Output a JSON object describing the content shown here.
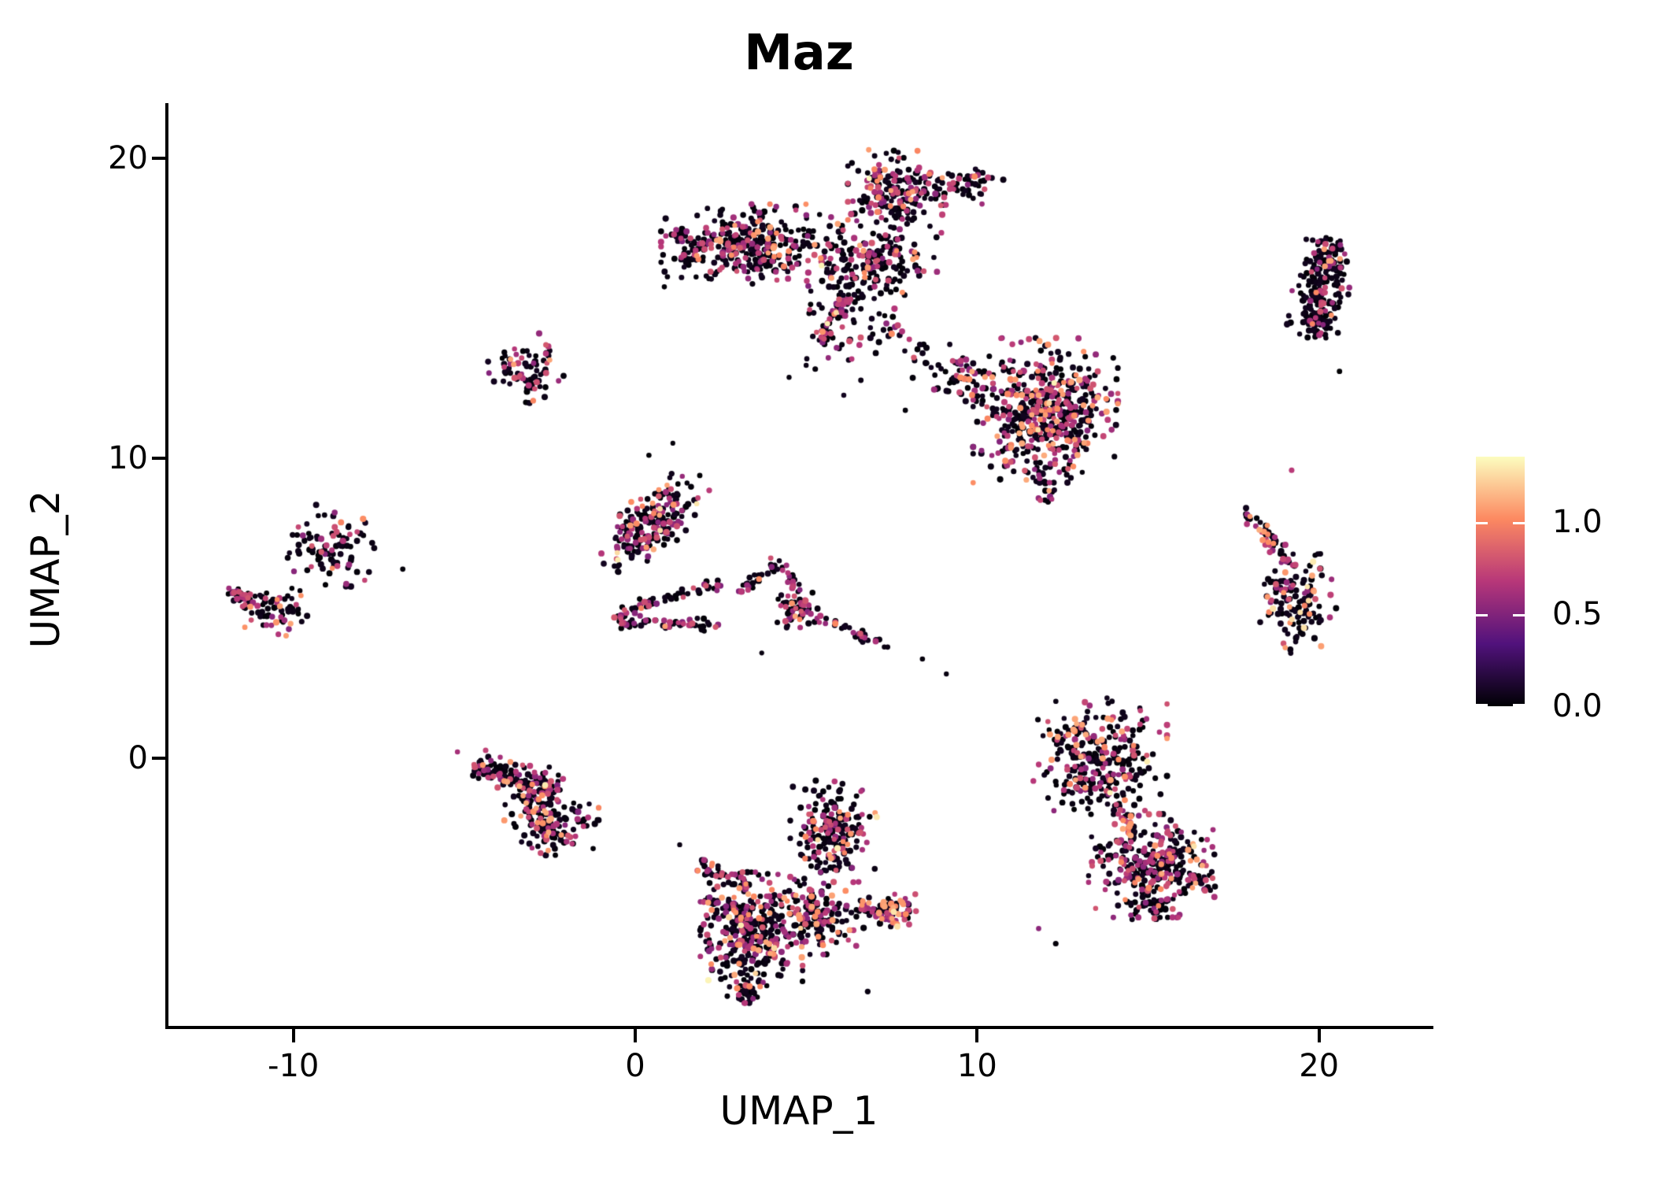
{
  "chart_data": {
    "type": "scatter",
    "title": "Maz",
    "xlabel": "UMAP_1",
    "ylabel": "UMAP_2",
    "background": "#FFFFFF",
    "axis_color": "#000000",
    "grid": "off",
    "xlim": [
      -13.7,
      23.3
    ],
    "ylim": [
      -9.0,
      21.8
    ],
    "x_ticks": [
      -10,
      0,
      10,
      20
    ],
    "y_ticks": [
      0,
      10,
      20
    ],
    "x_tick_labels": [
      "-10",
      "0",
      "10",
      "20"
    ],
    "y_tick_labels": [
      "0",
      "10",
      "20"
    ],
    "point_radius_px": 3.7,
    "colorbar": {
      "colormap": "magma",
      "anchors": [
        "#000004",
        "#51127C",
        "#B73779",
        "#FC8961",
        "#FCFDBF"
      ],
      "tick_values": [
        0.0,
        0.5,
        1.0
      ],
      "tick_labels": [
        "0.0",
        "0.5",
        "1.0"
      ],
      "vmax": 1.355,
      "legend_meaning": "expression level of Maz"
    },
    "color_semantics": {
      "zero_expression": "#000004",
      "mid_expression": "#B73779",
      "high_expression": "#FC8961",
      "max_expression": "#FCFDBF"
    },
    "clusters": [
      {
        "name": "top-band",
        "kind": "blob",
        "cx": 3.4,
        "cy": 17.1,
        "sx": 1.15,
        "sy": 0.6,
        "rot": 0,
        "n": 340,
        "mix": [
          0.62,
          0.3,
          0.07,
          0.01
        ]
      },
      {
        "name": "top-band-left-tip",
        "kind": "strand",
        "x1": 1.25,
        "y1": 17.6,
        "x2": 1.7,
        "y2": 16.5,
        "w": 0.18,
        "n": 30,
        "mix": [
          0.55,
          0.38,
          0.07,
          0
        ]
      },
      {
        "name": "top-upper-lobe",
        "kind": "blob",
        "cx": 7.6,
        "cy": 18.8,
        "sx": 0.6,
        "sy": 0.65,
        "rot": 0,
        "n": 185,
        "mix": [
          0.58,
          0.33,
          0.08,
          0.01
        ]
      },
      {
        "name": "top-upper-lobe-right",
        "kind": "blob",
        "cx": 9.5,
        "cy": 19.1,
        "sx": 0.55,
        "sy": 0.28,
        "rot": 0,
        "n": 60,
        "mix": [
          0.62,
          0.3,
          0.08,
          0
        ]
      },
      {
        "name": "top-mid-web",
        "kind": "blob",
        "cx": 7.0,
        "cy": 16.6,
        "sx": 0.85,
        "sy": 0.5,
        "rot": 0,
        "n": 170,
        "mix": [
          0.66,
          0.27,
          0.06,
          0.005
        ]
      },
      {
        "name": "top-gap-sparse",
        "kind": "blob",
        "cx": 5.9,
        "cy": 14.7,
        "sx": 0.75,
        "sy": 0.75,
        "rot": 0,
        "n": 62,
        "mix": [
          0.72,
          0.24,
          0.04,
          0
        ]
      },
      {
        "name": "top-tail",
        "kind": "strand",
        "x1": 6.2,
        "y1": 15.3,
        "x2": 5.35,
        "y2": 13.9,
        "w": 0.12,
        "n": 45,
        "mix": [
          0.45,
          0.48,
          0.05,
          0.01
        ]
      },
      {
        "name": "top-right-trail",
        "kind": "strand",
        "x1": 7.1,
        "y1": 15.4,
        "x2": 8.6,
        "y2": 12.8,
        "w": 0.25,
        "n": 28,
        "mix": [
          0.68,
          0.26,
          0.06,
          0
        ]
      },
      {
        "name": "trail-to-right-blob",
        "kind": "strand",
        "x1": 8.8,
        "y1": 12.7,
        "x2": 10.2,
        "y2": 12.2,
        "w": 0.3,
        "n": 24,
        "mix": [
          0.62,
          0.28,
          0.1,
          0
        ]
      },
      {
        "name": "right-blob",
        "kind": "blob",
        "cx": 12.0,
        "cy": 11.6,
        "sx": 0.92,
        "sy": 1.05,
        "rot": 0,
        "n": 540,
        "mix": [
          0.6,
          0.28,
          0.11,
          0.005
        ]
      },
      {
        "name": "right-blob-west-arm",
        "kind": "strand",
        "x1": 9.45,
        "y1": 13.35,
        "x2": 10.3,
        "y2": 12.1,
        "w": 0.2,
        "n": 30,
        "mix": [
          0.55,
          0.33,
          0.12,
          0
        ]
      },
      {
        "name": "right-blob-tail",
        "kind": "strand",
        "x1": 11.85,
        "y1": 9.5,
        "x2": 12.15,
        "y2": 8.5,
        "w": 0.15,
        "n": 15,
        "mix": [
          0.7,
          0.25,
          0.05,
          0
        ]
      },
      {
        "name": "topright-sausage",
        "kind": "strand",
        "x1": 20.25,
        "y1": 17.3,
        "x2": 19.85,
        "y2": 14.05,
        "w": 0.36,
        "n": 235,
        "mix": [
          0.78,
          0.17,
          0.05,
          0
        ]
      },
      {
        "name": "right-streak",
        "kind": "strand",
        "x1": 17.85,
        "y1": 8.3,
        "x2": 19.1,
        "y2": 6.45,
        "w": 0.13,
        "n": 48,
        "mix": [
          0.55,
          0.34,
          0.11,
          0
        ]
      },
      {
        "name": "right-lower-blob",
        "kind": "blob",
        "cx": 19.35,
        "cy": 5.15,
        "sx": 0.5,
        "sy": 0.72,
        "rot": 0,
        "n": 135,
        "mix": [
          0.68,
          0.21,
          0.09,
          0.02
        ]
      },
      {
        "name": "left-blob",
        "kind": "blob",
        "cx": -8.9,
        "cy": 7.1,
        "sx": 0.55,
        "sy": 0.6,
        "rot": 0,
        "n": 95,
        "mix": [
          0.74,
          0.24,
          0.02,
          0
        ]
      },
      {
        "name": "farleft-streak",
        "kind": "strand",
        "x1": -11.95,
        "y1": 5.65,
        "x2": -11.15,
        "y2": 5.15,
        "w": 0.1,
        "n": 28,
        "mix": [
          0.58,
          0.32,
          0.1,
          0
        ]
      },
      {
        "name": "farleft-blob",
        "kind": "blob",
        "cx": -10.45,
        "cy": 4.85,
        "sx": 0.48,
        "sy": 0.35,
        "rot": 0,
        "n": 65,
        "mix": [
          0.62,
          0.28,
          0.1,
          0
        ]
      },
      {
        "name": "small-mid-blob",
        "kind": "blob",
        "cx": -3.2,
        "cy": 12.9,
        "sx": 0.48,
        "sy": 0.55,
        "rot": 0,
        "n": 80,
        "mix": [
          0.66,
          0.24,
          0.1,
          0
        ]
      },
      {
        "name": "center-diag-blob",
        "kind": "blob",
        "cx": 0.55,
        "cy": 7.9,
        "sx": 0.88,
        "sy": 0.4,
        "rot": 52,
        "n": 215,
        "mix": [
          0.6,
          0.33,
          0.06,
          0.005
        ]
      },
      {
        "name": "loop-upper",
        "kind": "strand",
        "x1": -0.35,
        "y1": 4.9,
        "x2": 2.45,
        "y2": 5.85,
        "w": 0.1,
        "n": 48,
        "mix": [
          0.62,
          0.34,
          0.04,
          0
        ]
      },
      {
        "name": "loop-lower",
        "kind": "strand",
        "x1": -0.4,
        "y1": 4.55,
        "x2": 2.4,
        "y2": 4.45,
        "w": 0.1,
        "n": 52,
        "mix": [
          0.64,
          0.32,
          0.04,
          0
        ]
      },
      {
        "name": "loop-left-cap",
        "kind": "blob",
        "cx": -0.45,
        "cy": 4.72,
        "sx": 0.12,
        "sy": 0.2,
        "rot": 0,
        "n": 10,
        "mix": [
          0.6,
          0.4,
          0,
          0
        ]
      },
      {
        "name": "peak-up",
        "kind": "strand",
        "x1": 3.0,
        "y1": 5.5,
        "x2": 4.2,
        "y2": 6.6,
        "w": 0.1,
        "n": 26,
        "mix": [
          0.55,
          0.4,
          0.05,
          0
        ]
      },
      {
        "name": "peak-down",
        "kind": "strand",
        "x1": 4.25,
        "y1": 6.6,
        "x2": 5.2,
        "y2": 4.45,
        "w": 0.1,
        "n": 30,
        "mix": [
          0.6,
          0.36,
          0.04,
          0
        ]
      },
      {
        "name": "peak-blob",
        "kind": "blob",
        "cx": 4.7,
        "cy": 5.05,
        "sx": 0.3,
        "sy": 0.35,
        "rot": 0,
        "n": 42,
        "mix": [
          0.62,
          0.3,
          0.08,
          0
        ]
      },
      {
        "name": "line-se",
        "kind": "strand",
        "x1": 5.3,
        "y1": 4.75,
        "x2": 7.4,
        "y2": 3.7,
        "w": 0.08,
        "n": 34,
        "mix": [
          0.62,
          0.34,
          0.04,
          0
        ]
      },
      {
        "name": "bottomleft-band",
        "kind": "strand",
        "x1": -4.7,
        "y1": -0.3,
        "x2": -2.2,
        "y2": -1.05,
        "w": 0.27,
        "n": 135,
        "mix": [
          0.64,
          0.26,
          0.09,
          0.005
        ]
      },
      {
        "name": "bottomleft-connector",
        "kind": "strand",
        "x1": -3.3,
        "y1": -1.2,
        "x2": -2.9,
        "y2": -1.9,
        "w": 0.14,
        "n": 24,
        "mix": [
          0.55,
          0.3,
          0.15,
          0
        ]
      },
      {
        "name": "bottomleft-blob",
        "kind": "blob",
        "cx": -2.45,
        "cy": -2.1,
        "sx": 0.6,
        "sy": 0.5,
        "rot": 0,
        "n": 125,
        "mix": [
          0.64,
          0.27,
          0.09,
          0
        ]
      },
      {
        "name": "bottommid-upper-lobe",
        "kind": "blob",
        "cx": 5.8,
        "cy": -2.6,
        "sx": 0.55,
        "sy": 0.8,
        "rot": 0,
        "n": 215,
        "mix": [
          0.62,
          0.29,
          0.08,
          0.005
        ]
      },
      {
        "name": "bottommid-left-arm-a",
        "kind": "strand",
        "x1": 1.7,
        "y1": -3.5,
        "x2": 3.3,
        "y2": -4.3,
        "w": 0.17,
        "n": 40,
        "mix": [
          0.66,
          0.26,
          0.08,
          0
        ]
      },
      {
        "name": "bottommid-left-arm-b",
        "kind": "strand",
        "x1": 2.0,
        "y1": -4.65,
        "x2": 3.2,
        "y2": -5.25,
        "w": 0.14,
        "n": 30,
        "mix": [
          0.68,
          0.26,
          0.06,
          0
        ]
      },
      {
        "name": "bottommid-main",
        "kind": "blob",
        "cx": 3.4,
        "cy": -6.0,
        "sx": 0.65,
        "sy": 0.95,
        "rot": 0,
        "n": 345,
        "mix": [
          0.62,
          0.28,
          0.08,
          0.02
        ]
      },
      {
        "name": "bottommid-right-arm",
        "kind": "blob",
        "cx": 5.3,
        "cy": -5.3,
        "sx": 0.6,
        "sy": 0.55,
        "rot": 0,
        "n": 165,
        "mix": [
          0.64,
          0.28,
          0.08,
          0
        ]
      },
      {
        "name": "bottommid-bridge",
        "kind": "strand",
        "x1": 6.4,
        "y1": -5.0,
        "x2": 7.5,
        "y2": -5.1,
        "w": 0.17,
        "n": 40,
        "mix": [
          0.62,
          0.28,
          0.1,
          0
        ]
      },
      {
        "name": "bottommid-knot",
        "kind": "blob",
        "cx": 7.6,
        "cy": -5.15,
        "sx": 0.3,
        "sy": 0.26,
        "rot": 0,
        "n": 55,
        "mix": [
          0.35,
          0.42,
          0.21,
          0.02
        ]
      },
      {
        "name": "bottommid-tip",
        "kind": "strand",
        "x1": 3.0,
        "y1": -7.6,
        "x2": 3.5,
        "y2": -8.1,
        "w": 0.12,
        "n": 20,
        "mix": [
          0.7,
          0.25,
          0.05,
          0
        ]
      },
      {
        "name": "bottomright-top-lobe",
        "kind": "blob",
        "cx": 13.6,
        "cy": 0.0,
        "sx": 0.85,
        "sy": 0.82,
        "rot": 0,
        "n": 285,
        "mix": [
          0.68,
          0.23,
          0.08,
          0.005
        ]
      },
      {
        "name": "bottomright-orange-pocket",
        "kind": "blob",
        "cx": 12.9,
        "cy": 0.75,
        "sx": 0.2,
        "sy": 0.28,
        "rot": 0,
        "n": 14,
        "mix": [
          0.15,
          0.35,
          0.5,
          0
        ]
      },
      {
        "name": "bottomright-neck",
        "kind": "strand",
        "x1": 14.1,
        "y1": -1.5,
        "x2": 14.6,
        "y2": -2.6,
        "w": 0.12,
        "n": 30,
        "mix": [
          0.5,
          0.28,
          0.22,
          0
        ]
      },
      {
        "name": "bottomright-bottom-lobe",
        "kind": "blob",
        "cx": 15.1,
        "cy": -3.6,
        "sx": 0.8,
        "sy": 0.75,
        "rot": 0,
        "n": 305,
        "mix": [
          0.58,
          0.31,
          0.09,
          0.02
        ]
      },
      {
        "name": "bottomright-right-spur",
        "kind": "strand",
        "x1": 16.2,
        "y1": -3.9,
        "x2": 16.8,
        "y2": -4.45,
        "w": 0.12,
        "n": 20,
        "mix": [
          0.6,
          0.35,
          0.05,
          0
        ]
      },
      {
        "name": "bottomright-bottom-tip",
        "kind": "blob",
        "cx": 14.95,
        "cy": -4.95,
        "sx": 0.26,
        "sy": 0.2,
        "rot": 0,
        "n": 25,
        "mix": [
          0.6,
          0.35,
          0.05,
          0
        ]
      }
    ],
    "singles": [
      [
        6.1,
        12.1
      ],
      [
        6.6,
        12.6
      ],
      [
        7.9,
        11.6
      ],
      [
        9.2,
        13.8
      ],
      [
        10.7,
        14.0
      ],
      [
        5.0,
        13.1
      ],
      [
        4.5,
        12.7
      ],
      [
        -6.8,
        6.3
      ],
      [
        19.2,
        9.6
      ],
      [
        13.8,
        2.0
      ],
      [
        9.1,
        2.8
      ],
      [
        8.4,
        3.3
      ],
      [
        1.1,
        10.5
      ],
      [
        0.4,
        10.1
      ],
      [
        3.7,
        3.5
      ],
      [
        16.9,
        -2.4
      ],
      [
        12.3,
        -6.2
      ],
      [
        11.8,
        -5.7
      ],
      [
        6.8,
        -7.8
      ],
      [
        1.3,
        -2.9
      ],
      [
        -5.2,
        0.2
      ],
      [
        20.6,
        12.9
      ]
    ],
    "singles_mix": [
      0.75,
      0.25,
      0,
      0
    ]
  }
}
